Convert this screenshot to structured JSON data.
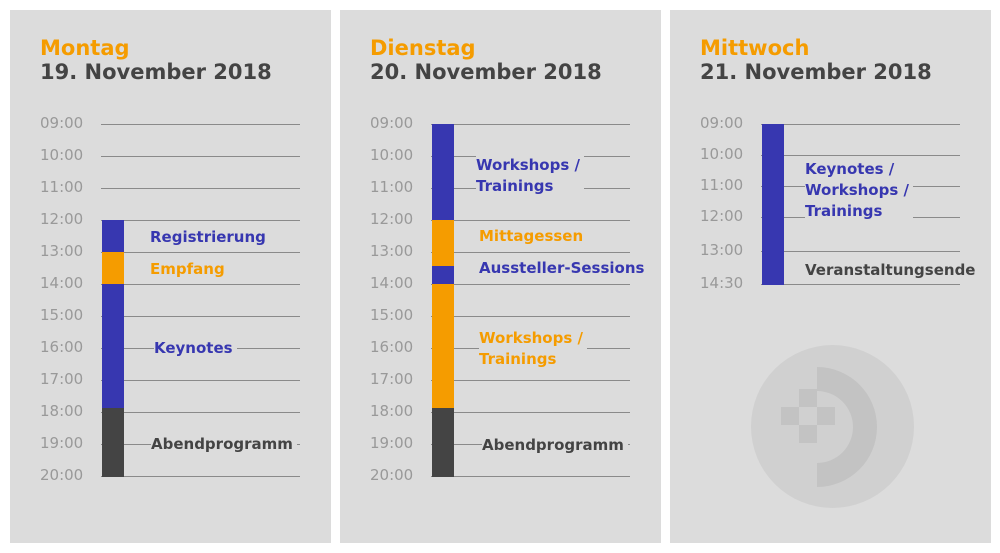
{
  "colors": {
    "blue": "#3737b0",
    "orange": "#f59c00",
    "dark": "#444444",
    "grid": "#8a8a8a",
    "time": "#999999",
    "panel": "#dcdcdc"
  },
  "days": [
    {
      "weekday": "Montag",
      "date": "19. November 2018",
      "times": [
        "09:00",
        "10:00",
        "11:00",
        "12:00",
        "13:00",
        "14:00",
        "15:00",
        "16:00",
        "17:00",
        "18:00",
        "19:00",
        "20:00"
      ],
      "events": [
        {
          "label": "Registrierung",
          "color": "blue"
        },
        {
          "label": "Empfang",
          "color": "orange"
        },
        {
          "label": "Keynotes",
          "color": "blue"
        },
        {
          "label": "Abendprogramm",
          "color": "dark"
        }
      ]
    },
    {
      "weekday": "Dienstag",
      "date": "20. November 2018",
      "times": [
        "09:00",
        "10:00",
        "11:00",
        "12:00",
        "13:00",
        "14:00",
        "15:00",
        "16:00",
        "17:00",
        "18:00",
        "19:00",
        "20:00"
      ],
      "events": [
        {
          "label_1": "Workshops /",
          "label_2": "Trainings",
          "color": "blue"
        },
        {
          "label": "Mittagessen",
          "color": "orange"
        },
        {
          "label": "Aussteller-Sessions",
          "color": "blue"
        },
        {
          "label_1": "Workshops /",
          "label_2": "Trainings",
          "color": "orange"
        },
        {
          "label": "Abendprogramm",
          "color": "dark"
        }
      ]
    },
    {
      "weekday": "Mittwoch",
      "date": "21. November 2018",
      "times": [
        "09:00",
        "10:00",
        "11:00",
        "12:00",
        "13:00",
        "14:30"
      ],
      "events": [
        {
          "label_1": "Keynotes /",
          "label_2": "Workshops /",
          "label_3": "Trainings",
          "color": "blue"
        },
        {
          "label": "Veranstaltungsende",
          "color": "dark"
        }
      ]
    }
  ]
}
